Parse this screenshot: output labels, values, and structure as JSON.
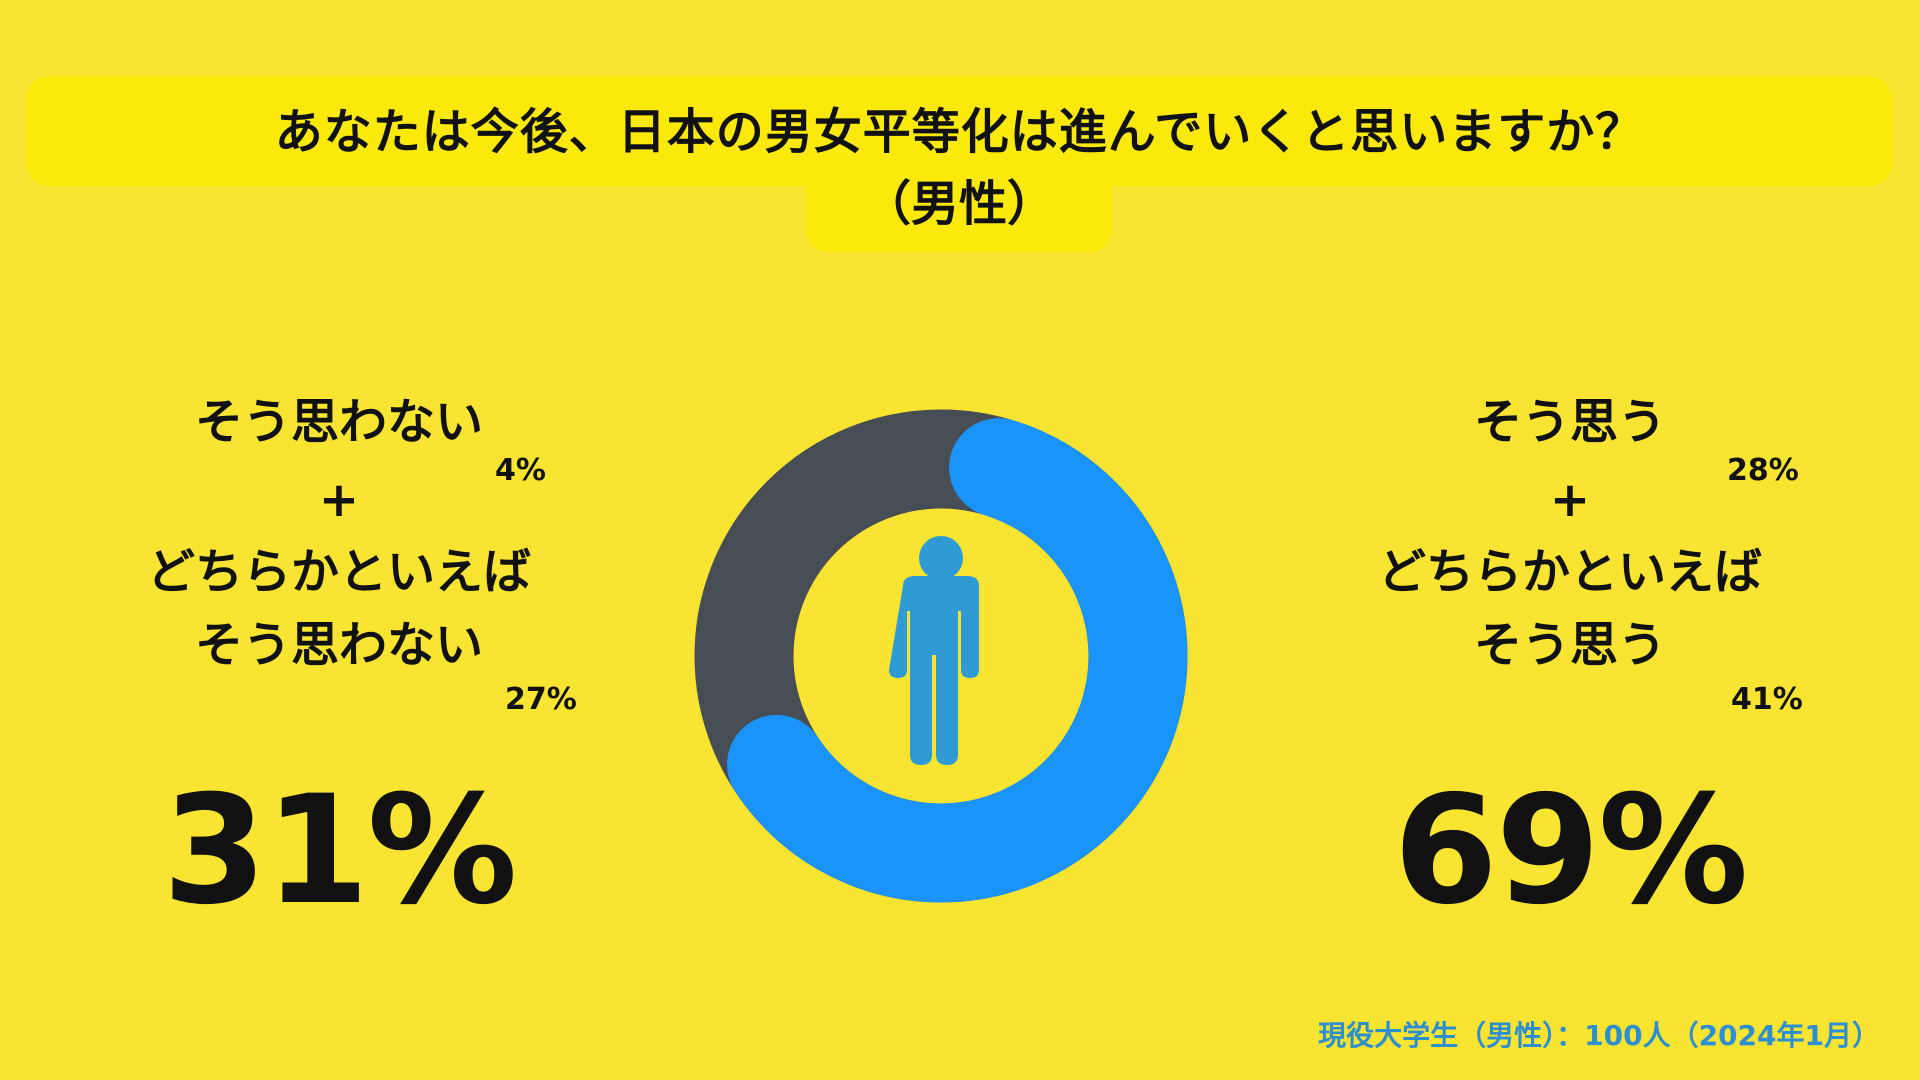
{
  "header": {
    "title": "あなたは今後、日本の男女平等化は進んでいくと思いますか？",
    "subtitle": "（男性）"
  },
  "left": {
    "line1": "そう思わない",
    "pct1": "4%",
    "plus": "+",
    "line2": "どちらかといえば",
    "line3": "そう思わない",
    "pct2": "27%",
    "total": "31%"
  },
  "right": {
    "line1": "そう思う",
    "pct1": "28%",
    "plus": "+",
    "line2": "どちらかといえば",
    "line3": "そう思う",
    "pct2": "41%",
    "total": "69%"
  },
  "footer": "現役大学生（男性）：100人（2024年1月）",
  "center_icon": "male-person-icon",
  "chart_data": {
    "type": "pie",
    "variant": "donut",
    "categories": [
      "そう思う + どちらかといえばそう思う",
      "そう思わない + どちらかといえばそう思わない"
    ],
    "values": [
      69,
      31
    ],
    "colors": [
      "#1a94fb",
      "#474d55"
    ],
    "icon_color": "#2e9bd6",
    "background": "#f8e431"
  }
}
